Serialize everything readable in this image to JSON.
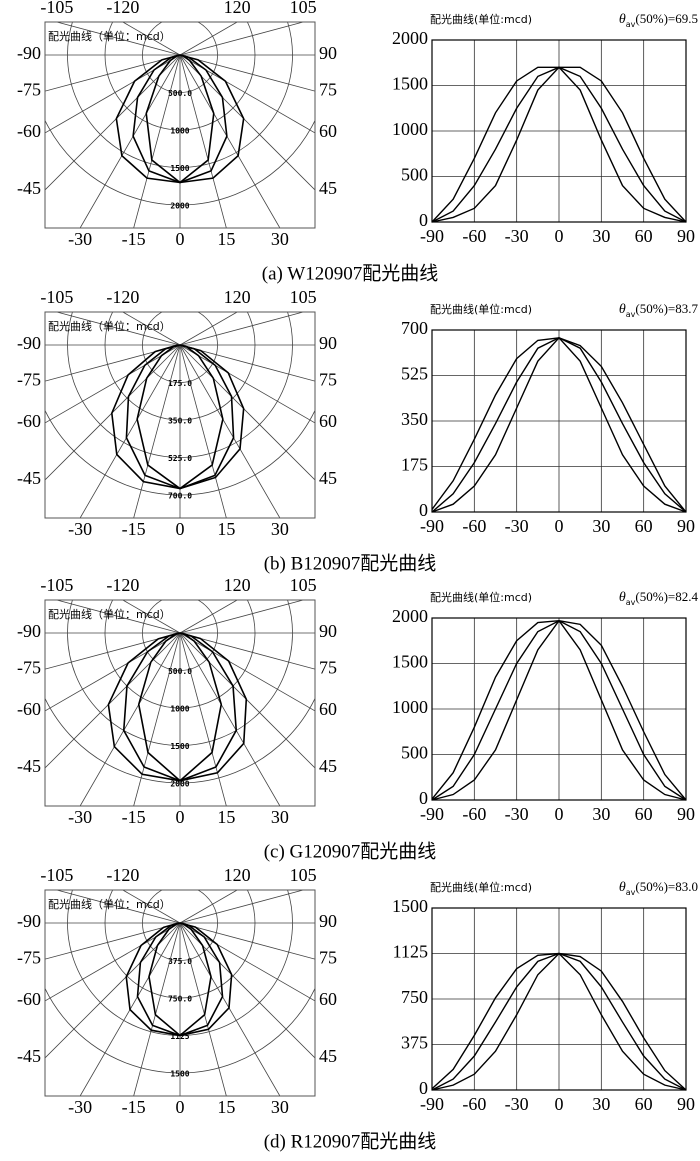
{
  "chart_data": [
    {
      "type": "light-distribution",
      "caption": "(a) W120907配光曲线",
      "polar": {
        "title": "配光曲线（单位：mcd）",
        "rlim": [
          0,
          2000
        ],
        "rings": [
          {
            "value": 500,
            "label": "500.0"
          },
          1000,
          1500,
          2000
        ],
        "angle_ticks": [
          -105,
          -120,
          120,
          105,
          -90,
          -75,
          -60,
          -45,
          -30,
          -15,
          0,
          15,
          30,
          45,
          60,
          75,
          90
        ]
      },
      "line": {
        "title": "配光曲线(单位:mcd)",
        "annotation": {
          "symbol": "θ",
          "subscript": "av",
          "text": "(50%)=69.5"
        },
        "xlim": [
          -90,
          90
        ],
        "xticks": [
          -90,
          -60,
          -30,
          0,
          30,
          60,
          90
        ],
        "ylim": [
          0,
          2000
        ],
        "yticks": [
          0,
          500,
          1000,
          1500,
          2000
        ],
        "x": [
          -90,
          -75,
          -60,
          -45,
          -30,
          -15,
          0,
          15,
          30,
          45,
          60,
          75,
          90
        ],
        "series": [
          {
            "color": "#000000",
            "values": [
              0,
              50,
              150,
              400,
              900,
              1450,
              1700,
              1450,
              900,
              400,
              150,
              50,
              0
            ]
          },
          {
            "color": "#000000",
            "values": [
              0,
              120,
              400,
              800,
              1250,
              1600,
              1700,
              1600,
              1250,
              800,
              400,
              120,
              0
            ]
          },
          {
            "color": "#000000",
            "values": [
              0,
              250,
              700,
              1200,
              1550,
              1700,
              1700,
              1700,
              1550,
              1200,
              700,
              250,
              0
            ]
          }
        ]
      }
    },
    {
      "type": "light-distribution",
      "caption": "(b) B120907配光曲线",
      "polar": {
        "title": "配光曲线（单位：mcd）",
        "rlim": [
          0,
          700
        ],
        "rings": [
          {
            "value": 175,
            "label": "175.0"
          },
          {
            "value": 350,
            "label": "350.0"
          },
          {
            "value": 525,
            "label": "525.0"
          },
          {
            "value": 700,
            "label": "700.0"
          }
        ],
        "angle_ticks": [
          -105,
          -120,
          120,
          105,
          -90,
          -75,
          -60,
          -45,
          -30,
          -15,
          0,
          15,
          30,
          45,
          60,
          75,
          90
        ]
      },
      "line": {
        "title": "配光曲线(单位:mcd)",
        "annotation": {
          "symbol": "θ",
          "subscript": "av",
          "text": "(50%)=83.7"
        },
        "xlim": [
          -90,
          90
        ],
        "xticks": [
          -90,
          -60,
          -30,
          0,
          30,
          60,
          90
        ],
        "ylim": [
          0,
          700
        ],
        "yticks": [
          0,
          175,
          350,
          525,
          700
        ],
        "x": [
          -90,
          -75,
          -60,
          -45,
          -30,
          -15,
          0,
          15,
          30,
          45,
          60,
          75,
          90
        ],
        "series": [
          {
            "color": "#000000",
            "values": [
              0,
              30,
              100,
              220,
              400,
              580,
              670,
              580,
              400,
              220,
              100,
              30,
              0
            ]
          },
          {
            "color": "#000000",
            "values": [
              0,
              70,
              190,
              340,
              500,
              630,
              670,
              630,
              500,
              340,
              190,
              70,
              0
            ]
          },
          {
            "color": "#000000",
            "values": [
              10,
              120,
              280,
              450,
              590,
              660,
              670,
              640,
              560,
              420,
              260,
              100,
              0
            ]
          }
        ]
      }
    },
    {
      "type": "light-distribution",
      "caption": "(c) G120907配光曲线",
      "polar": {
        "title": "配光曲线（单位：mcd）",
        "rlim": [
          0,
          2000
        ],
        "rings": [
          {
            "value": 500,
            "label": "500.0"
          },
          1000,
          1500,
          2000
        ],
        "angle_ticks": [
          -105,
          -120,
          120,
          105,
          -90,
          -75,
          -60,
          -45,
          -30,
          -15,
          0,
          15,
          30,
          45,
          60,
          75,
          90
        ]
      },
      "line": {
        "title": "配光曲线(单位:mcd)",
        "annotation": {
          "symbol": "θ",
          "subscript": "av",
          "text": "(50%)=82.4"
        },
        "xlim": [
          -90,
          90
        ],
        "xticks": [
          -90,
          -60,
          -30,
          0,
          30,
          60,
          90
        ],
        "ylim": [
          0,
          2000
        ],
        "yticks": [
          0,
          500,
          1000,
          1500,
          2000
        ],
        "x": [
          -90,
          -75,
          -60,
          -45,
          -30,
          -15,
          0,
          15,
          30,
          45,
          60,
          75,
          90
        ],
        "series": [
          {
            "color": "#000000",
            "values": [
              0,
              60,
              220,
              550,
              1100,
              1650,
              1970,
              1650,
              1100,
              550,
              220,
              60,
              0
            ]
          },
          {
            "color": "#000000",
            "values": [
              0,
              150,
              500,
              1000,
              1500,
              1850,
              1970,
              1850,
              1500,
              1000,
              500,
              150,
              0
            ]
          },
          {
            "color": "#000000",
            "values": [
              10,
              300,
              800,
              1350,
              1750,
              1950,
              1970,
              1930,
              1700,
              1250,
              750,
              280,
              0
            ]
          }
        ]
      }
    },
    {
      "type": "light-distribution",
      "caption": "(d) R120907配光曲线",
      "polar": {
        "title": "配光曲线（单位：mcd）",
        "rlim": [
          0,
          1500
        ],
        "rings": [
          {
            "value": 375,
            "label": "375.0"
          },
          {
            "value": 750,
            "label": "750.0"
          },
          1125,
          1500
        ],
        "angle_ticks": [
          -105,
          -120,
          120,
          105,
          -90,
          -75,
          -60,
          -45,
          -30,
          -15,
          0,
          15,
          30,
          45,
          60,
          75,
          90
        ]
      },
      "line": {
        "title": "配光曲线(单位:mcd)",
        "annotation": {
          "symbol": "θ",
          "subscript": "av",
          "text": "(50%)=83.0"
        },
        "xlim": [
          -90,
          90
        ],
        "xticks": [
          -90,
          -60,
          -30,
          0,
          30,
          60,
          90
        ],
        "ylim": [
          0,
          1500
        ],
        "yticks": [
          0,
          375,
          750,
          1125,
          1500
        ],
        "x": [
          -90,
          -75,
          -60,
          -45,
          -30,
          -15,
          0,
          15,
          30,
          45,
          60,
          75,
          90
        ],
        "series": [
          {
            "color": "#000000",
            "values": [
              0,
              40,
              130,
              320,
              620,
              950,
              1125,
              950,
              620,
              320,
              130,
              40,
              0
            ]
          },
          {
            "color": "#000000",
            "values": [
              0,
              90,
              280,
              560,
              850,
              1060,
              1125,
              1060,
              850,
              560,
              280,
              90,
              0
            ]
          },
          {
            "color": "#000000",
            "values": [
              10,
              170,
              450,
              760,
              1000,
              1110,
              1125,
              1100,
              980,
              730,
              430,
              160,
              0
            ]
          }
        ]
      }
    }
  ]
}
